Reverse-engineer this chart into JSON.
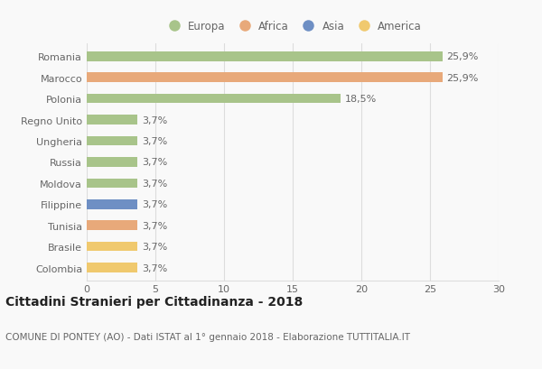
{
  "countries": [
    "Romania",
    "Marocco",
    "Polonia",
    "Regno Unito",
    "Ungheria",
    "Russia",
    "Moldova",
    "Filippine",
    "Tunisia",
    "Brasile",
    "Colombia"
  ],
  "values": [
    25.9,
    25.9,
    18.5,
    3.7,
    3.7,
    3.7,
    3.7,
    3.7,
    3.7,
    3.7,
    3.7
  ],
  "labels": [
    "25,9%",
    "25,9%",
    "18,5%",
    "3,7%",
    "3,7%",
    "3,7%",
    "3,7%",
    "3,7%",
    "3,7%",
    "3,7%",
    "3,7%"
  ],
  "colors": [
    "#a8c48a",
    "#e8a97a",
    "#a8c48a",
    "#a8c48a",
    "#a8c48a",
    "#a8c48a",
    "#a8c48a",
    "#6e8fc4",
    "#e8a97a",
    "#f0c96e",
    "#f0c96e"
  ],
  "legend_labels": [
    "Europa",
    "Africa",
    "Asia",
    "America"
  ],
  "legend_colors": [
    "#a8c48a",
    "#e8a97a",
    "#6e8fc4",
    "#f0c96e"
  ],
  "xlim": [
    0,
    30
  ],
  "xticks": [
    0,
    5,
    10,
    15,
    20,
    25,
    30
  ],
  "title": "Cittadini Stranieri per Cittadinanza - 2018",
  "subtitle": "COMUNE DI PONTEY (AO) - Dati ISTAT al 1° gennaio 2018 - Elaborazione TUTTITALIA.IT",
  "bg_color": "#f9f9f9",
  "grid_color": "#dddddd",
  "bar_height": 0.45,
  "title_fontsize": 10,
  "subtitle_fontsize": 7.5,
  "label_fontsize": 8,
  "tick_fontsize": 8,
  "legend_fontsize": 8.5
}
